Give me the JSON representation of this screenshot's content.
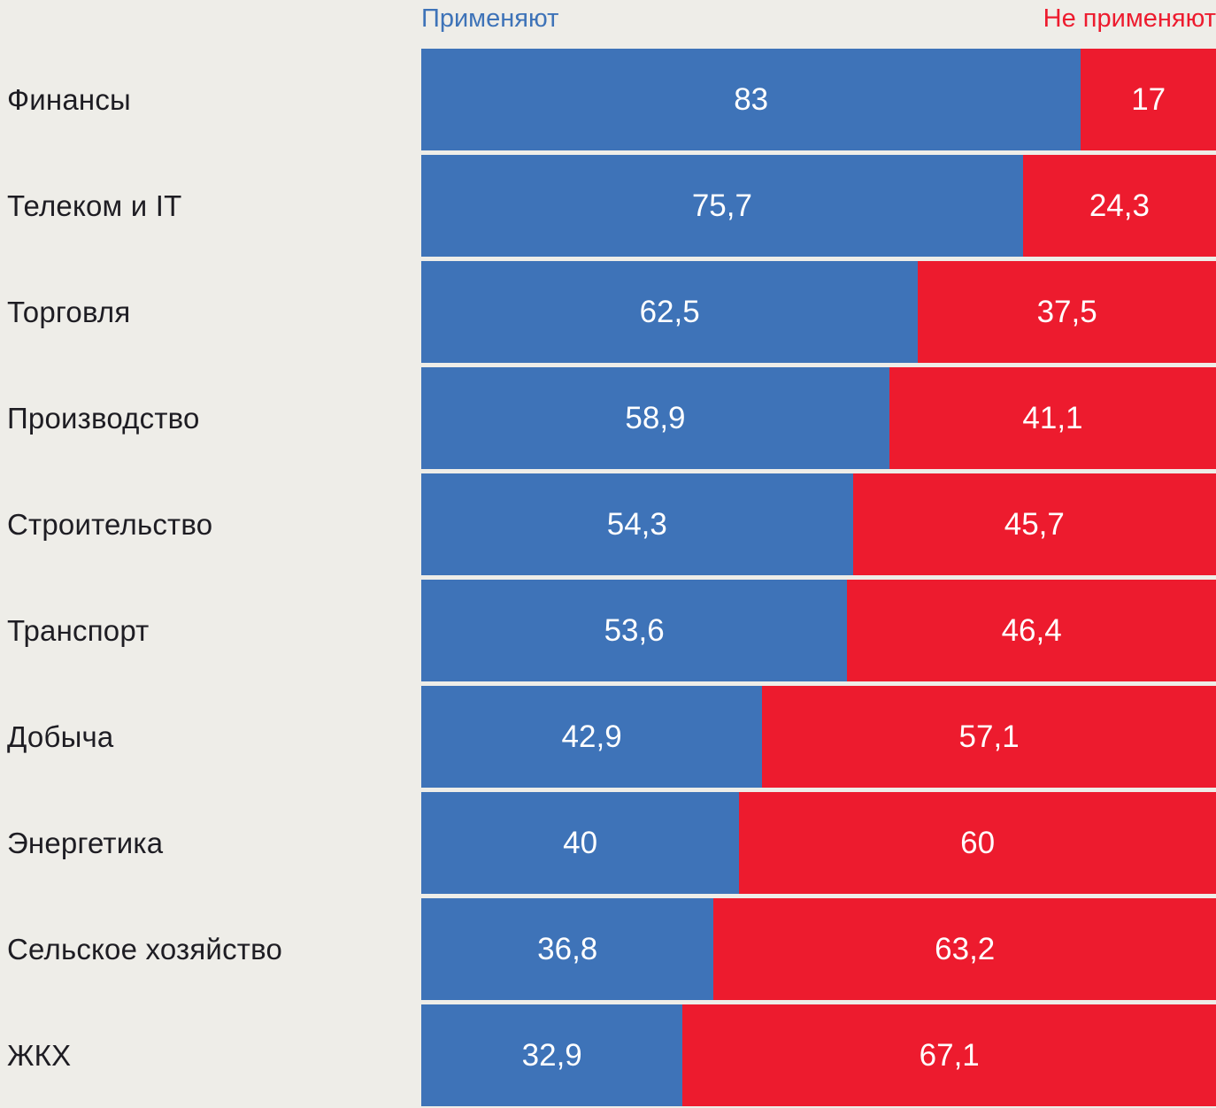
{
  "page": {
    "background_color": "#EEEDE8",
    "text_color": "#1E1D23"
  },
  "legend": {
    "apply_label": "Применяют",
    "not_apply_label": "Не применяют"
  },
  "colors": {
    "apply": "#3E73B8",
    "not_apply": "#ED1B2E",
    "value_text": "#FFFFFF"
  },
  "chart_data": {
    "type": "bar",
    "orientation": "horizontal",
    "stacked": true,
    "legend_position": "top",
    "value_range": [
      0,
      100
    ],
    "grid": false,
    "categories": [
      "Финансы",
      "Телеком и IT",
      "Торговля",
      "Производство",
      "Строительство",
      "Транспорт",
      "Добыча",
      "Энергетика",
      "Сельское хозяйство",
      "ЖКХ"
    ],
    "series": [
      {
        "name": "Применяют",
        "color": "#3E73B8",
        "values": [
          83,
          75.7,
          62.5,
          58.9,
          54.3,
          53.6,
          42.9,
          40,
          36.8,
          32.9
        ],
        "labels": [
          "83",
          "75,7",
          "62,5",
          "58,9",
          "54,3",
          "53,6",
          "42,9",
          "40",
          "36,8",
          "32,9"
        ]
      },
      {
        "name": "Не применяют",
        "color": "#ED1B2E",
        "values": [
          17,
          24.3,
          37.5,
          41.1,
          45.7,
          46.4,
          57.1,
          60,
          63.2,
          67.1
        ],
        "labels": [
          "17",
          "24,3",
          "37,5",
          "41,1",
          "45,7",
          "46,4",
          "57,1",
          "60",
          "63,2",
          "67,1"
        ]
      }
    ]
  }
}
